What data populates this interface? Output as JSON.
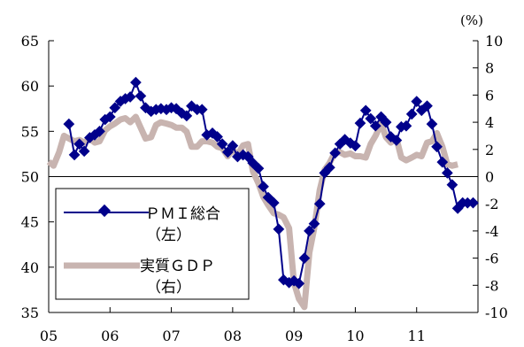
{
  "chart_data": {
    "type": "line",
    "title": "",
    "xlabel": "",
    "ylabel_left": "",
    "ylabel_right": "",
    "unit_label_right": "(%)",
    "x_tick_labels": [
      "05",
      "06",
      "07",
      "08",
      "09",
      "10",
      "11"
    ],
    "x_tick_values": [
      2005,
      2006,
      2007,
      2008,
      2009,
      2010,
      2011
    ],
    "xlim": [
      2005,
      2012
    ],
    "y_left": {
      "lim": [
        35,
        65
      ],
      "ticks": [
        35,
        40,
        45,
        50,
        55,
        60,
        65
      ]
    },
    "y_right": {
      "lim": [
        -10,
        10
      ],
      "ticks": [
        -10,
        -8,
        -6,
        -4,
        -2,
        0,
        2,
        4,
        6,
        8,
        10
      ]
    },
    "grid": false,
    "zero_line_right": 0,
    "legend": {
      "position": "bottom-left-inside",
      "entries": [
        {
          "line1": "ＰＭＩ総合",
          "line2": "（左）"
        },
        {
          "line1": "実質ＧＤＰ",
          "line2": "（右）"
        }
      ]
    },
    "series": [
      {
        "name": "ＰＭＩ総合（左）",
        "axis": "left",
        "style": "line-diamond",
        "color": "#00008B",
        "x": [
          2005.33,
          2005.42,
          2005.5,
          2005.58,
          2005.67,
          2005.75,
          2005.83,
          2005.92,
          2006.0,
          2006.08,
          2006.17,
          2006.25,
          2006.33,
          2006.42,
          2006.5,
          2006.58,
          2006.67,
          2006.75,
          2006.83,
          2006.92,
          2007.0,
          2007.08,
          2007.17,
          2007.25,
          2007.33,
          2007.42,
          2007.5,
          2007.58,
          2007.67,
          2007.75,
          2007.83,
          2007.92,
          2008.0,
          2008.08,
          2008.17,
          2008.25,
          2008.33,
          2008.42,
          2008.5,
          2008.58,
          2008.67,
          2008.75,
          2008.83,
          2008.92,
          2009.0,
          2009.08,
          2009.17,
          2009.25,
          2009.33,
          2009.42,
          2009.5,
          2009.58,
          2009.67,
          2009.75,
          2009.83,
          2009.92,
          2010.0,
          2010.08,
          2010.17,
          2010.25,
          2010.33,
          2010.42,
          2010.5,
          2010.58,
          2010.67,
          2010.75,
          2010.83,
          2010.92,
          2011.0,
          2011.08,
          2011.17,
          2011.25,
          2011.33,
          2011.42,
          2011.5,
          2011.58,
          2011.67,
          2011.75,
          2011.83,
          2011.92
        ],
        "values": [
          55.8,
          52.4,
          53.6,
          52.8,
          54.3,
          54.6,
          55.0,
          56.3,
          56.6,
          57.6,
          58.3,
          58.6,
          58.8,
          60.4,
          58.9,
          57.6,
          57.2,
          57.4,
          57.5,
          57.4,
          57.6,
          57.5,
          57.0,
          56.7,
          57.8,
          57.4,
          57.4,
          54.6,
          54.8,
          54.4,
          53.6,
          52.7,
          53.4,
          52.2,
          52.4,
          52.2,
          51.5,
          50.9,
          48.9,
          47.7,
          47.1,
          44.2,
          38.6,
          38.3,
          38.5,
          38.2,
          41.0,
          44.0,
          44.8,
          47.0,
          50.4,
          51.0,
          52.6,
          53.6,
          54.1,
          53.7,
          53.4,
          55.9,
          57.3,
          56.4,
          55.6,
          56.6,
          56.0,
          54.4,
          54.0,
          55.5,
          55.6,
          56.9,
          58.3,
          57.3,
          57.8,
          55.8,
          53.3,
          51.6,
          50.4,
          49.1,
          46.5,
          47.1,
          47.1,
          47.1
        ]
      },
      {
        "name": "実質ＧＤＰ（右）",
        "axis": "right",
        "style": "thick-line",
        "color": "#c8b4b0",
        "x": [
          2005.0,
          2005.08,
          2005.17,
          2005.25,
          2005.33,
          2005.42,
          2005.5,
          2005.58,
          2005.67,
          2005.75,
          2005.83,
          2005.92,
          2006.0,
          2006.08,
          2006.17,
          2006.25,
          2006.33,
          2006.42,
          2006.5,
          2006.58,
          2006.67,
          2006.75,
          2006.83,
          2006.92,
          2007.0,
          2007.08,
          2007.17,
          2007.25,
          2007.33,
          2007.42,
          2007.5,
          2007.58,
          2007.67,
          2007.75,
          2007.83,
          2007.92,
          2008.0,
          2008.08,
          2008.17,
          2008.25,
          2008.33,
          2008.42,
          2008.5,
          2008.58,
          2008.67,
          2008.75,
          2008.83,
          2008.92,
          2009.0,
          2009.08,
          2009.17,
          2009.25,
          2009.33,
          2009.42,
          2009.5,
          2009.58,
          2009.67,
          2009.75,
          2009.83,
          2009.92,
          2010.0,
          2010.08,
          2010.17,
          2010.25,
          2010.33,
          2010.42,
          2010.5,
          2010.58,
          2010.67,
          2010.75,
          2010.83,
          2010.92,
          2011.0,
          2011.08,
          2011.17,
          2011.25,
          2011.33,
          2011.42,
          2011.5,
          2011.58,
          2011.67
        ],
        "values": [
          1.1,
          0.8,
          1.8,
          3.0,
          2.8,
          2.6,
          2.7,
          2.5,
          2.8,
          2.5,
          2.6,
          3.4,
          3.7,
          3.9,
          4.2,
          4.3,
          4.0,
          4.4,
          3.6,
          2.8,
          2.9,
          3.8,
          4.0,
          3.9,
          3.8,
          3.6,
          3.6,
          3.3,
          2.2,
          2.2,
          2.6,
          2.6,
          2.5,
          2.2,
          2.1,
          1.5,
          2.0,
          1.6,
          2.3,
          2.4,
          0.4,
          -0.5,
          -1.5,
          -2.1,
          -2.7,
          -2.8,
          -3.0,
          -3.8,
          -7.8,
          -9.0,
          -9.6,
          -5.6,
          -3.8,
          -1.0,
          0.5,
          1.0,
          1.8,
          1.8,
          1.6,
          1.7,
          1.5,
          1.5,
          1.4,
          2.4,
          3.0,
          3.9,
          2.9,
          2.5,
          2.8,
          1.4,
          1.2,
          1.4,
          1.6,
          1.5,
          2.5,
          2.6,
          3.2,
          2.2,
          0.9,
          0.8,
          0.9
        ]
      }
    ]
  }
}
